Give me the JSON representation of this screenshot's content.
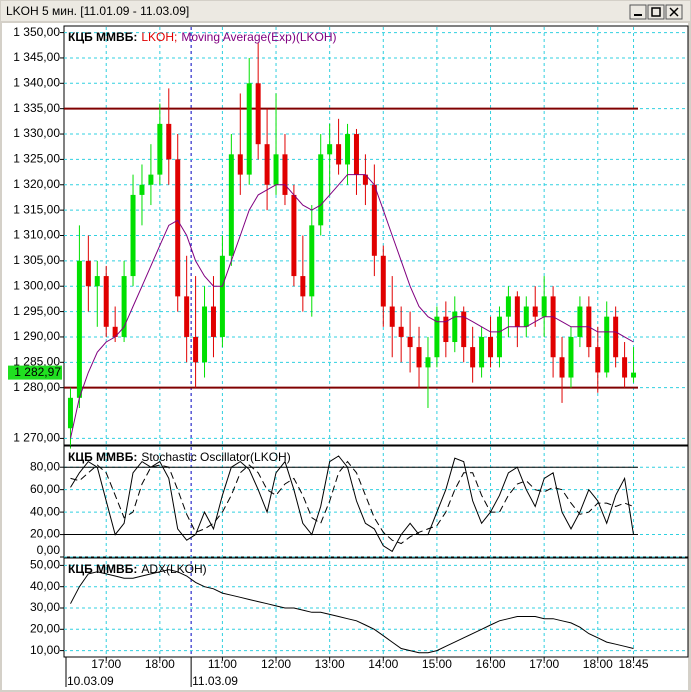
{
  "window_title": "LKOH  5 мин.  [11.01.09 - 11.03.09]",
  "x_axis": {
    "categories": [
      null,
      null,
      null,
      null,
      "17:00",
      null,
      null,
      null,
      null,
      null,
      "18:00",
      null,
      null,
      null,
      null,
      null,
      null,
      "11:00",
      null,
      null,
      null,
      null,
      null,
      "12:00",
      null,
      null,
      null,
      null,
      null,
      "13:00",
      null,
      null,
      null,
      null,
      null,
      "14:00",
      null,
      null,
      null,
      null,
      null,
      "15:00",
      null,
      null,
      null,
      null,
      null,
      "16:00",
      null,
      null,
      null,
      null,
      null,
      "17:00",
      null,
      null,
      null,
      null,
      null,
      "18:00",
      null,
      null,
      null,
      "18:45"
    ],
    "dates": [
      "10.03.09",
      null,
      null,
      null,
      null,
      null,
      null,
      null,
      null,
      null,
      null,
      null,
      null,
      null,
      "11.03.09",
      null,
      null,
      null,
      null,
      null,
      null,
      null,
      null,
      null,
      null,
      null,
      null,
      null,
      null,
      null,
      null,
      null,
      null,
      null,
      null,
      null,
      null,
      null,
      null,
      null,
      null,
      null,
      null,
      null,
      null,
      null,
      null,
      null,
      null,
      null,
      null,
      null,
      null,
      null,
      null,
      null,
      null,
      null,
      null,
      null,
      null,
      null,
      null,
      null
    ],
    "grid": true,
    "day_separator_color": "#0000c0"
  },
  "chart_data": [
    {
      "type": "candlestick",
      "source": "КЦБ ММВБ:",
      "candle_name": "LKOH;",
      "up_color": "#00e000",
      "down_color": "#e00000",
      "open": [
        1272,
        1278,
        1305,
        1300,
        1302,
        1292,
        1290,
        1302,
        1318,
        1320,
        1322,
        1332,
        1325,
        1298,
        1290,
        1285,
        1296,
        1290,
        1306,
        1326,
        1322,
        1340,
        1328,
        1320,
        1326,
        1318,
        1302,
        1298,
        1312,
        1326,
        1328,
        1324,
        1330,
        1322,
        1320,
        1306,
        1296,
        1292,
        1290,
        1288,
        1284,
        1286,
        1294,
        1289,
        1295,
        1288,
        1284,
        1290,
        1286,
        1294,
        1298,
        1292,
        1296,
        1294,
        1298,
        1286,
        1282,
        1290,
        1296,
        1288,
        1283,
        1294,
        1286,
        1282
      ],
      "high": [
        1280,
        1312,
        1310,
        1305,
        1304,
        1296,
        1305,
        1322,
        1324,
        1328,
        1336,
        1339,
        1330,
        1306,
        1302,
        1300,
        1302,
        1310,
        1330,
        1338,
        1345,
        1348,
        1335,
        1338,
        1330,
        1320,
        1310,
        1316,
        1330,
        1332,
        1333,
        1332,
        1331,
        1326,
        1324,
        1308,
        1302,
        1296,
        1295,
        1292,
        1290,
        1296,
        1297,
        1298,
        1296,
        1292,
        1292,
        1294,
        1296,
        1300,
        1299,
        1298,
        1300,
        1302,
        1300,
        1290,
        1292,
        1298,
        1298,
        1292,
        1297,
        1296,
        1289,
        1288
      ],
      "low": [
        1268,
        1276,
        1295,
        1292,
        1290,
        1289,
        1289,
        1300,
        1312,
        1316,
        1320,
        1320,
        1295,
        1285,
        1280,
        1282,
        1286,
        1288,
        1304,
        1318,
        1320,
        1325,
        1315,
        1318,
        1316,
        1300,
        1295,
        1294,
        1310,
        1318,
        1322,
        1320,
        1318,
        1316,
        1302,
        1292,
        1286,
        1285,
        1283,
        1280,
        1276,
        1284,
        1286,
        1287,
        1285,
        1281,
        1282,
        1284,
        1284,
        1290,
        1288,
        1290,
        1292,
        1290,
        1282,
        1277,
        1280,
        1288,
        1286,
        1279,
        1282,
        1284,
        1280,
        1281
      ],
      "close": [
        1278,
        1305,
        1300,
        1302,
        1292,
        1290,
        1302,
        1318,
        1320,
        1322,
        1332,
        1325,
        1298,
        1290,
        1285,
        1296,
        1290,
        1306,
        1326,
        1322,
        1340,
        1328,
        1320,
        1326,
        1318,
        1302,
        1298,
        1312,
        1326,
        1328,
        1324,
        1330,
        1322,
        1320,
        1306,
        1296,
        1292,
        1290,
        1288,
        1284,
        1286,
        1294,
        1289,
        1295,
        1288,
        1284,
        1290,
        1286,
        1294,
        1298,
        1292,
        1296,
        1294,
        1298,
        1286,
        1282,
        1290,
        1296,
        1288,
        1283,
        1294,
        1286,
        1282,
        1282.97
      ],
      "last_label": "1 282,97",
      "last_color": "#20e020",
      "series": [
        {
          "name": "Moving Average(Exp)(LKOH)",
          "color": "#800080",
          "values": [
            1270,
            1278,
            1283,
            1287,
            1289,
            1290,
            1292,
            1296,
            1300,
            1304,
            1308,
            1312,
            1313,
            1310,
            1305,
            1302,
            1300,
            1300,
            1305,
            1310,
            1315,
            1318,
            1319,
            1320,
            1320,
            1318,
            1316,
            1315,
            1316,
            1318,
            1320,
            1322,
            1322,
            1322,
            1320,
            1315,
            1310,
            1305,
            1300,
            1296,
            1294,
            1293,
            1293,
            1294,
            1294,
            1293,
            1292,
            1291,
            1291,
            1292,
            1292,
            1292,
            1293,
            1294,
            1294,
            1293,
            1292,
            1292,
            1292,
            1291,
            1291,
            1291,
            1290,
            1289
          ]
        }
      ],
      "levels": [
        1335,
        1280
      ],
      "level_color": "#800000",
      "ylim": [
        1268.7,
        1351.1
      ],
      "yticks": [
        {
          "value": 1270,
          "label": "1 270,00"
        },
        {
          "value": 1280,
          "label": "1 280,00"
        },
        {
          "value": 1285,
          "label": "1 285,00"
        },
        {
          "value": 1290,
          "label": "1 290,00"
        },
        {
          "value": 1295,
          "label": "1 295,00"
        },
        {
          "value": 1300,
          "label": "1 300,00"
        },
        {
          "value": 1305,
          "label": "1 305,00"
        },
        {
          "value": 1310,
          "label": "1 310,00"
        },
        {
          "value": 1315,
          "label": "1 315,00"
        },
        {
          "value": 1320,
          "label": "1 320,00"
        },
        {
          "value": 1325,
          "label": "1 325,00"
        },
        {
          "value": 1330,
          "label": "1 330,00"
        },
        {
          "value": 1335,
          "label": "1 335,00"
        },
        {
          "value": 1340,
          "label": "1 340,00"
        },
        {
          "value": 1345,
          "label": "1 345,00"
        },
        {
          "value": 1350,
          "label": "1 350,00"
        }
      ]
    },
    {
      "type": "line",
      "source": "КЦБ ММВБ:",
      "name": "Stochastic Oscillator(LKOH)",
      "series": [
        {
          "color": "#000000",
          "dashed": false,
          "values": [
            62,
            75,
            85,
            80,
            50,
            20,
            30,
            75,
            85,
            80,
            85,
            70,
            25,
            15,
            20,
            40,
            25,
            55,
            80,
            85,
            78,
            60,
            40,
            75,
            85,
            60,
            30,
            20,
            45,
            85,
            90,
            80,
            50,
            30,
            25,
            10,
            5,
            20,
            30,
            20,
            20,
            40,
            60,
            88,
            85,
            50,
            30,
            40,
            55,
            75,
            80,
            60,
            45,
            70,
            75,
            40,
            25,
            40,
            60,
            50,
            30,
            55,
            70,
            20
          ]
        },
        {
          "color": "#000000",
          "dashed": true,
          "values": [
            70,
            68,
            75,
            82,
            75,
            55,
            35,
            40,
            65,
            80,
            82,
            80,
            60,
            38,
            22,
            25,
            30,
            40,
            55,
            75,
            82,
            75,
            60,
            55,
            65,
            70,
            55,
            35,
            30,
            50,
            75,
            85,
            75,
            55,
            35,
            22,
            15,
            12,
            18,
            22,
            25,
            28,
            40,
            60,
            75,
            75,
            55,
            40,
            40,
            55,
            65,
            68,
            60,
            58,
            62,
            60,
            48,
            38,
            40,
            48,
            48,
            45,
            48,
            45
          ]
        }
      ],
      "levels": [
        80,
        20
      ],
      "level_color": "#000000",
      "ylim": [
        0,
        98
      ],
      "yticks": [
        {
          "value": 0,
          "label": "0,00"
        },
        {
          "value": 20,
          "label": "20,00"
        },
        {
          "value": 40,
          "label": "40,00"
        },
        {
          "value": 60,
          "label": "60,00"
        },
        {
          "value": 80,
          "label": "80,00"
        }
      ]
    },
    {
      "type": "line",
      "source": "КЦБ ММВБ:",
      "name": "ADX(LKOH)",
      "series": [
        {
          "color": "#000000",
          "dashed": false,
          "values": [
            32,
            40,
            46,
            47,
            46,
            45,
            44,
            44,
            45,
            46,
            47,
            48,
            47,
            45,
            42,
            40,
            39,
            37,
            36,
            35,
            34,
            33,
            32,
            31,
            30,
            30,
            29,
            28,
            28,
            27,
            26,
            25,
            24,
            22,
            20,
            17,
            14,
            11,
            10,
            9,
            9,
            10,
            12,
            14,
            16,
            18,
            20,
            22,
            24,
            25,
            26,
            26,
            26,
            25,
            25,
            24,
            23,
            21,
            18,
            16,
            14,
            13,
            12,
            11
          ]
        }
      ],
      "ylim": [
        7,
        53
      ],
      "yticks": [
        {
          "value": 10,
          "label": "10,00"
        },
        {
          "value": 20,
          "label": "20,00"
        },
        {
          "value": 30,
          "label": "30,00"
        },
        {
          "value": 40,
          "label": "40,00"
        },
        {
          "value": 50,
          "label": "50,00"
        }
      ]
    }
  ]
}
